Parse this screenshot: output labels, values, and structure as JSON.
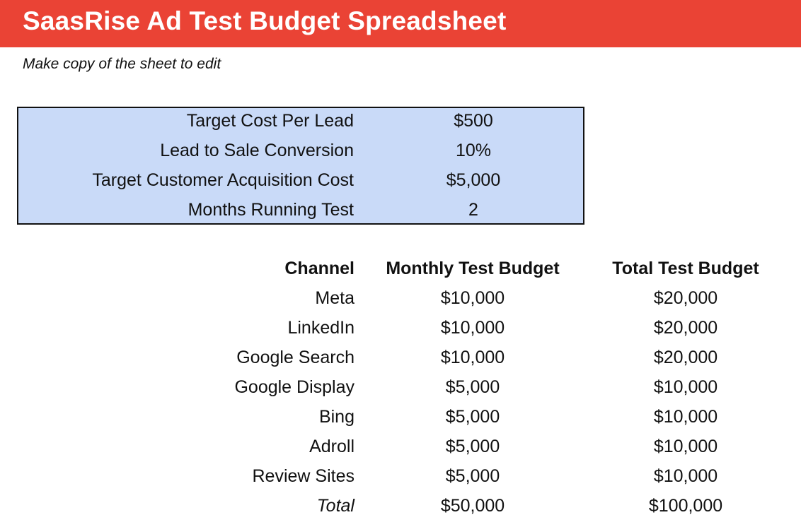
{
  "header": {
    "title": "SaasRise Ad Test Budget Spreadsheet",
    "subtitle": "Make copy of the sheet to edit",
    "bar_color": "#ea4335"
  },
  "assumptions": {
    "background_color": "#c9daf8",
    "rows": [
      {
        "label": "Target Cost Per Lead",
        "value": "$500"
      },
      {
        "label": "Lead to Sale Conversion",
        "value": "10%"
      },
      {
        "label": "Target Customer Acquisition Cost",
        "value": "$5,000"
      },
      {
        "label": "Months Running Test",
        "value": "2"
      }
    ]
  },
  "budget_table": {
    "headers": {
      "channel": "Channel",
      "monthly": "Monthly Test Budget",
      "total": "Total Test Budget"
    },
    "rows": [
      {
        "channel": "Meta",
        "monthly": "$10,000",
        "total": "$20,000"
      },
      {
        "channel": "LinkedIn",
        "monthly": "$10,000",
        "total": "$20,000"
      },
      {
        "channel": "Google Search",
        "monthly": "$10,000",
        "total": "$20,000"
      },
      {
        "channel": "Google Display",
        "monthly": "$5,000",
        "total": "$10,000"
      },
      {
        "channel": "Bing",
        "monthly": "$5,000",
        "total": "$10,000"
      },
      {
        "channel": "Adroll",
        "monthly": "$5,000",
        "total": "$10,000"
      },
      {
        "channel": "Review Sites",
        "monthly": "$5,000",
        "total": "$10,000"
      }
    ],
    "total_row": {
      "channel": "Total",
      "monthly": "$50,000",
      "total": "$100,000"
    }
  }
}
